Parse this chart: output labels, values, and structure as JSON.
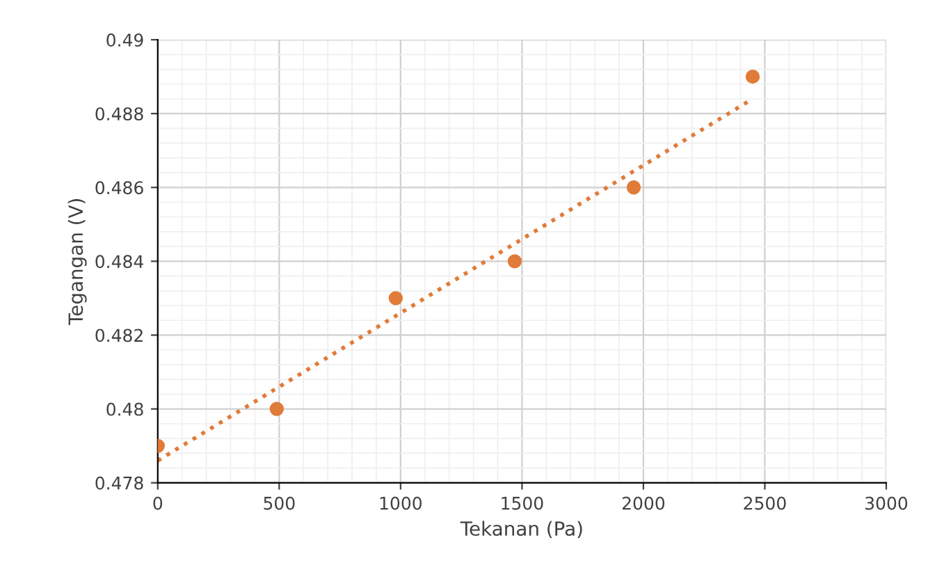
{
  "chart_data": {
    "type": "scatter",
    "xlabel": "Tekanan (Pa)",
    "ylabel": "Tegangan (V)",
    "series": [
      {
        "color": "#e07b39",
        "x": [
          0,
          490,
          980,
          1470,
          1960,
          2450
        ],
        "values": [
          0.479,
          0.48,
          0.483,
          0.484,
          0.486,
          0.489
        ],
        "marker": "circle"
      },
      {
        "type": "line",
        "color": "#e07b39",
        "x": [
          0,
          2450
        ],
        "values": [
          0.4786,
          0.4884
        ],
        "line_style": "dotted",
        "marker": "none"
      }
    ],
    "xlim": [
      0,
      3000
    ],
    "ylim": [
      0.478,
      0.49
    ],
    "xticks": [
      0,
      500,
      1000,
      1500,
      2000,
      2500,
      3000
    ],
    "yticks": [
      0.478,
      0.48,
      0.482,
      0.484,
      0.486,
      0.488,
      0.49
    ],
    "grid": true,
    "legend": false
  }
}
